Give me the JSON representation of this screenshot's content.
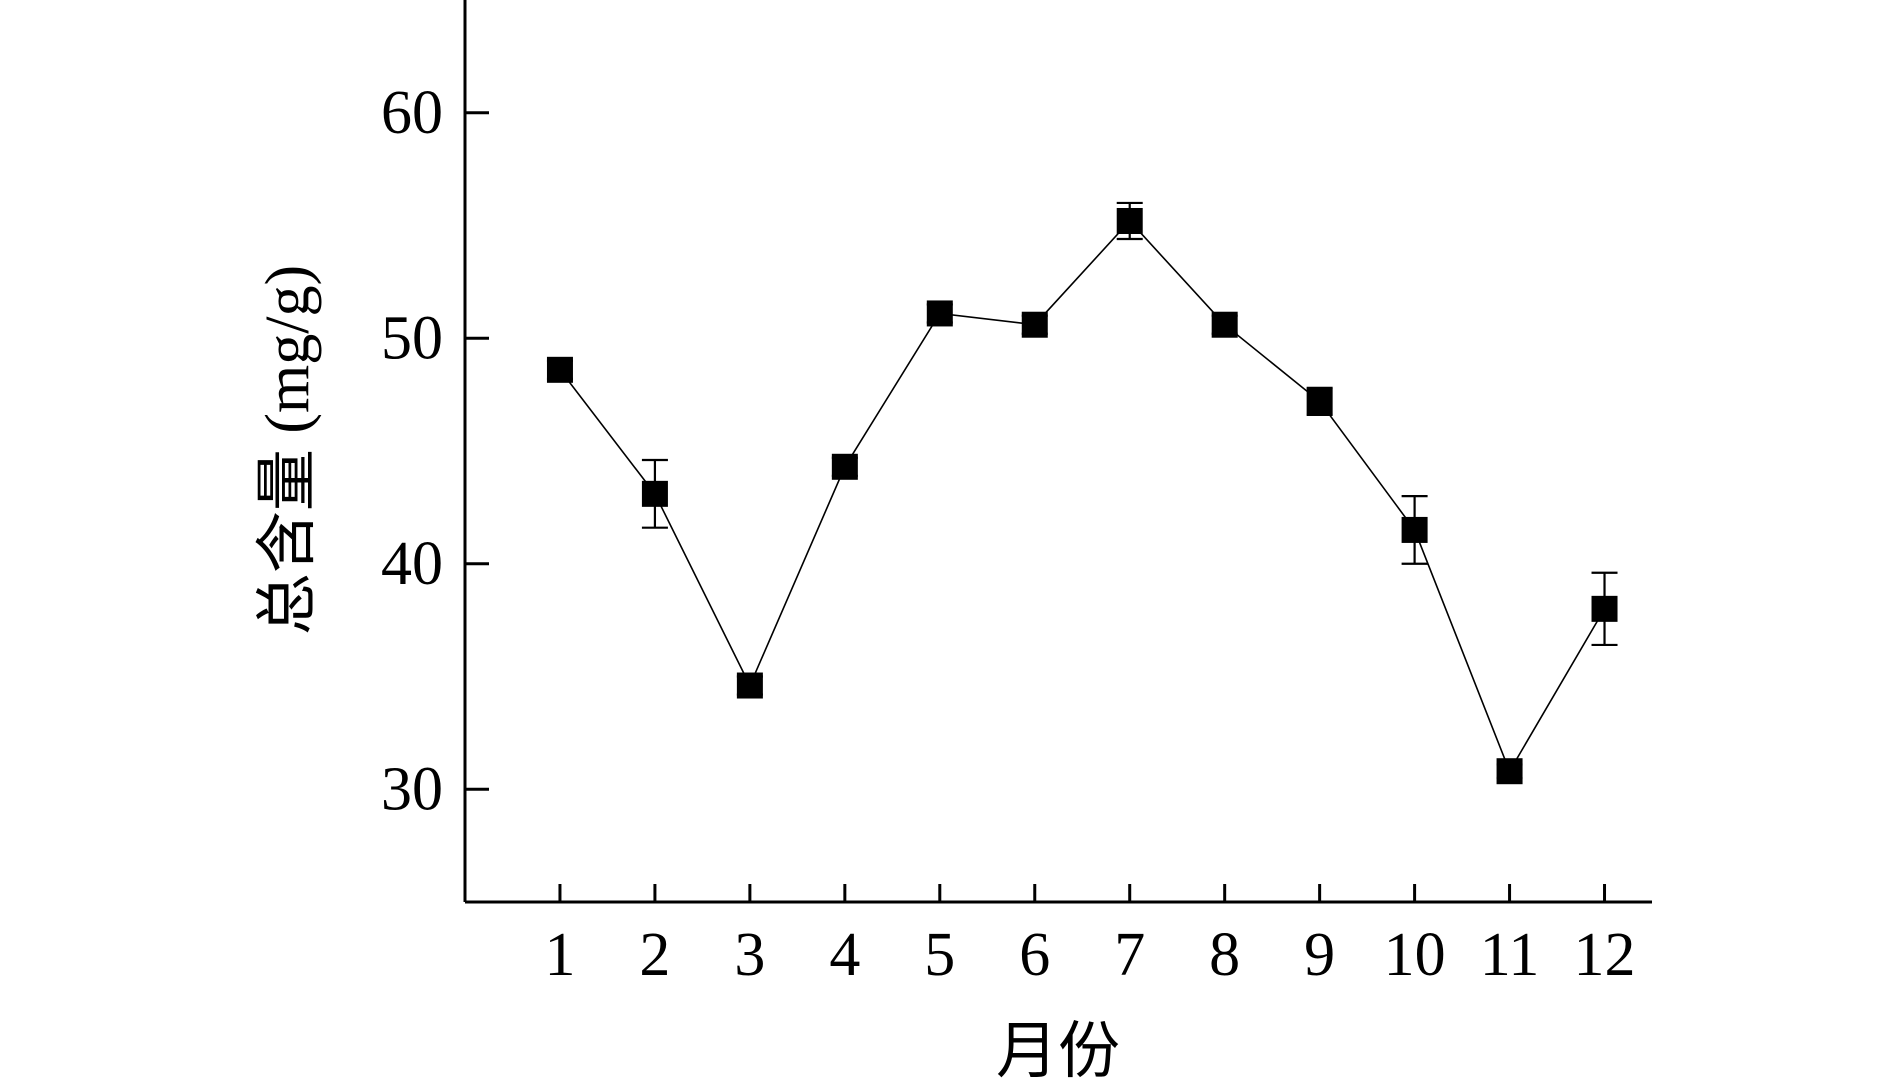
{
  "chart_data": {
    "type": "line",
    "xlabel": "月份",
    "ylabel": "总含量 (mg/g)",
    "categories": [
      "1",
      "2",
      "3",
      "4",
      "5",
      "6",
      "7",
      "8",
      "9",
      "10",
      "11",
      "12"
    ],
    "x": [
      1,
      2,
      3,
      4,
      5,
      6,
      7,
      8,
      9,
      10,
      11,
      12
    ],
    "series": [
      {
        "values": [
          48.6,
          43.1,
          34.6,
          44.3,
          51.1,
          50.6,
          55.2,
          50.6,
          47.2,
          41.5,
          30.8,
          38.0
        ],
        "errors": [
          0.4,
          1.5,
          0.4,
          0.4,
          0.4,
          0.4,
          0.8,
          0.4,
          0.6,
          1.5,
          0.3,
          1.6
        ]
      }
    ],
    "xlim": [
      0,
      12.5
    ],
    "ylim": [
      25,
      65
    ],
    "yticks": [
      30,
      40,
      50,
      60
    ],
    "grid": false,
    "legend": "none",
    "marker": "filled-square",
    "colors": {
      "line": "#000000",
      "marker": "#000000",
      "background": "#ffffff"
    }
  }
}
